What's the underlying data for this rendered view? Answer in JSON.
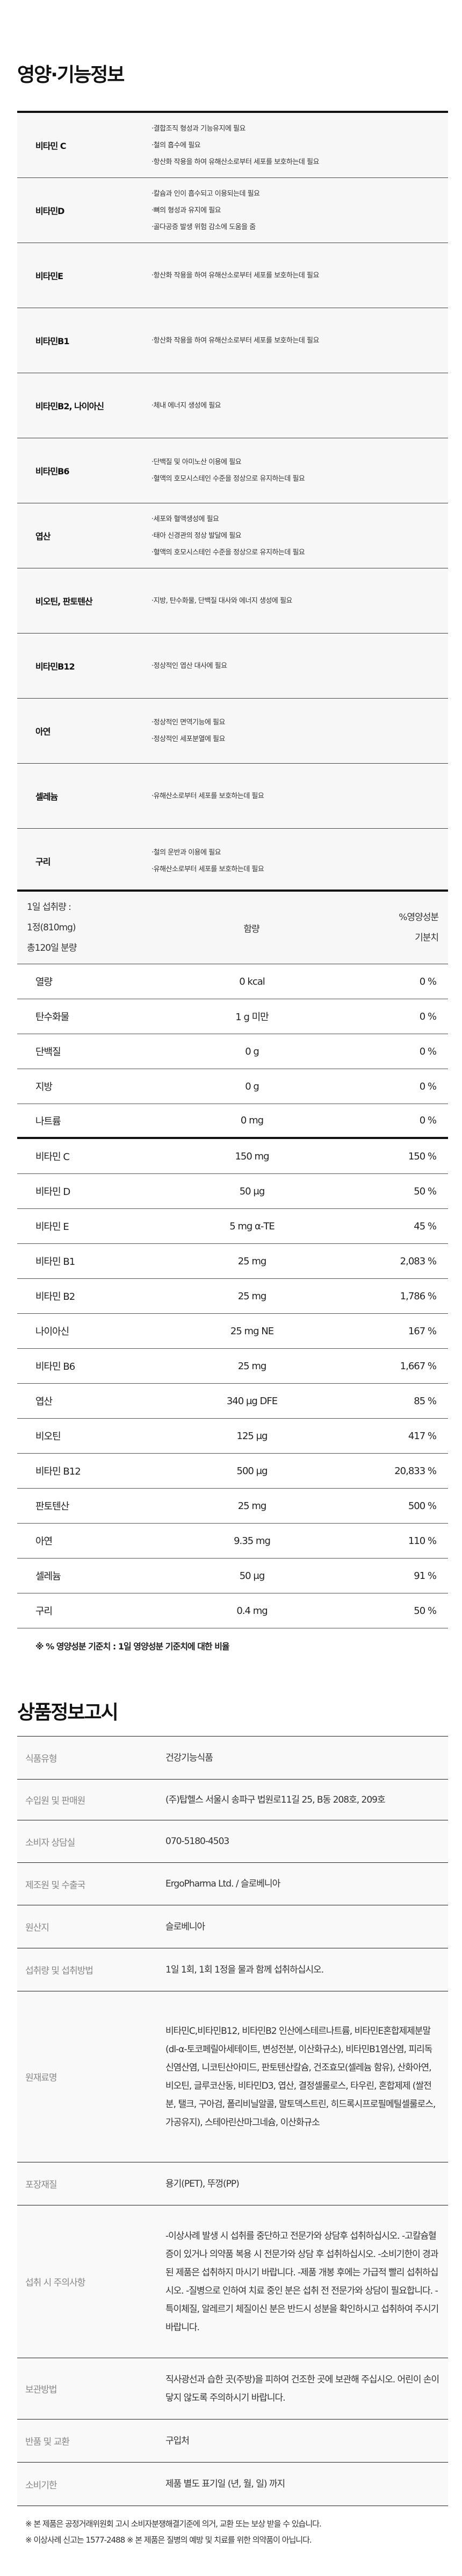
{
  "section1": {
    "title": "영양·기능정보",
    "functions": [
      {
        "name": "비타민 C",
        "desc": [
          "·결합조직 형성과 기능유지에 필요",
          "·철의 흡수에 필요",
          "·항산화 작용을 하여 유해산소로부터 세포를 보호하는데 필요"
        ]
      },
      {
        "name": "비타민D",
        "desc": [
          "·칼슘과 인이 흡수되고 이용되는데 필요",
          "·뼈의 형성과 유지에 필요",
          "·골다공증 발생 위험 감소에 도움을 줌"
        ]
      },
      {
        "name": "비타민E",
        "desc": [
          "·항산화 작용을 하여 유해산소로부터 세포를 보호하는데 필요"
        ]
      },
      {
        "name": "비타민B1",
        "desc": [
          "·항산화 작용을 하여 유해산소로부터 세포를 보호하는데 필요"
        ]
      },
      {
        "name": "비타민B2, 나이아신",
        "desc": [
          "·체내 에너지 생성에 필요"
        ]
      },
      {
        "name": "비타민B6",
        "desc": [
          "·단백질 및 아미노산 이용에 필요",
          "·혈액의 호모시스테인 수준을 정상으로 유지하는데 필요"
        ]
      },
      {
        "name": "엽산",
        "desc": [
          "·세포와 혈액생성에 필요",
          "·태아 신경관의 정상 발달에 필요",
          "·혈액의 호모시스테인 수준을 정상으로 유지하는데 필요"
        ]
      },
      {
        "name": "비오틴, 판토텐산",
        "desc": [
          "·지방, 탄수화물, 단백질 대사와 에너지 생성에 필요"
        ]
      },
      {
        "name": "비타민B12",
        "desc": [
          "·정상적인 엽산 대사에 필요"
        ]
      },
      {
        "name": "아연",
        "desc": [
          "·정상적인 면역기능에 필요",
          "·정상적인 세포분열에 필요"
        ]
      },
      {
        "name": "셀레늄",
        "desc": [
          "·유해산소로부터 세포를 보호하는데 필요"
        ]
      },
      {
        "name": "구리",
        "desc": [
          "·철의 운반과 이용에 필요",
          "·유해산소로부터 세포를 보호하는데 필요"
        ]
      }
    ]
  },
  "nutrition": {
    "header": {
      "serving": [
        "1일 섭취량 :",
        "1정(810mg)",
        "총120일 분량"
      ],
      "amount": "함량",
      "dv": [
        "%영양성분",
        "기분치"
      ]
    },
    "basic": [
      {
        "name": "열량",
        "amount": "0 kcal",
        "dv": "0 %"
      },
      {
        "name": "탄수화물",
        "amount": "1 g 미만",
        "dv": "0 %"
      },
      {
        "name": "단백질",
        "amount": "0 g",
        "dv": "0 %"
      },
      {
        "name": "지방",
        "amount": "0 g",
        "dv": "0 %"
      },
      {
        "name": "나트륨",
        "amount": "0 mg",
        "dv": "0 %"
      }
    ],
    "vitamins": [
      {
        "name": "비타민 C",
        "amount": "150 mg",
        "dv": "150 %"
      },
      {
        "name": "비타민 D",
        "amount": "50 μg",
        "dv": "50 %"
      },
      {
        "name": "비타민 E",
        "amount": "5 mg α-TE",
        "dv": "45 %"
      },
      {
        "name": "비타민 B1",
        "amount": "25 mg",
        "dv": "2,083 %"
      },
      {
        "name": "비타민 B2",
        "amount": "25 mg",
        "dv": "1,786 %"
      },
      {
        "name": "나이아신",
        "amount": "25 mg NE",
        "dv": "167 %"
      },
      {
        "name": "비타민 B6",
        "amount": "25 mg",
        "dv": "1,667 %"
      },
      {
        "name": "엽산",
        "amount": "340 μg DFE",
        "dv": "85 %"
      },
      {
        "name": "비오틴",
        "amount": "125 μg",
        "dv": "417 %"
      },
      {
        "name": "비타민 B12",
        "amount": "500 μg",
        "dv": "20,833 %"
      },
      {
        "name": "판토텐산",
        "amount": "25 mg",
        "dv": "500 %"
      },
      {
        "name": "아연",
        "amount": "9.35 mg",
        "dv": "110 %"
      },
      {
        "name": "셀레늄",
        "amount": "50 μg",
        "dv": "91 %"
      },
      {
        "name": "구리",
        "amount": "0.4 mg",
        "dv": "50 %"
      }
    ],
    "footnote": "※ % 영양성분 기준치 : 1일 영양성분 기준치에 대한 비율"
  },
  "section2": {
    "title": "상품정보고시",
    "rows": [
      {
        "label": "식품유형",
        "value": "건강기능식품"
      },
      {
        "label": "수입원 및 판매원",
        "value": "(주)탑헬스 서울시 송파구 법원로11길 25, B동 208호, 209호"
      },
      {
        "label": "소비자 상담실",
        "value": "070-5180-4503"
      },
      {
        "label": "제조원 및 수출국",
        "value": "ErgoPharma Ltd. / 슬로베니아"
      },
      {
        "label": "원산지",
        "value": "슬로베니아"
      },
      {
        "label": "섭취량 및 섭취방법",
        "value": "1일 1회, 1회 1정을 물과 함께 섭취하십시오."
      },
      {
        "label": "원재료명",
        "value": "비타민C,비타민B12, 비타민B2 인산에스테르나트륨, 비타민E혼합제제분말(dl-α-토코페릴아세테이트, 변성전분, 이산화규소), 비타민B1염산염, 피리독신염산염, 니코틴산아미드, 판토텐산칼슘, 건조효모(셀레늄 함유), 산화아연, 비오틴, 글루코산동, 비타민D3, 엽산, 결정셀룰로스, 타우린, 혼합제제 (쌀전분, 탤크, 구아검, 폴리비닐알콜, 말토덱스트린, 히드록시프로필메틸셀룰로스, 가공유지), 스테아린산마그네슘, 이산화규소"
      },
      {
        "label": "포장재질",
        "value": "용기(PET), 뚜껑(PP)"
      },
      {
        "label": "섭취 시 주의사항",
        "value": "-이상사례 발생 시 섭취를 중단하고 전문가와 상담후 섭취하십시오. -고칼슘혈증이 있거나 의약품 복용 시 전문가와 상담 후 섭취하십시오. -소비기한이 경과된 제품은 섭취하지 마시기 바랍니다. -제품 개봉 후에는 가급적 빨리 섭취하십시오. -질병으로 인하여 치료 중인 분은 섭취 전 전문가와 상담이 필요합니다. -특이체질, 알레르기 체질이신 분은 반드시 성분을 확인하시고 섭취하여 주시기 바랍니다."
      },
      {
        "label": "보관방법",
        "value": "직사광선과 습한 곳(주방)을 피하여 건조한 곳에 보관해 주십시오. 어린이 손이 닿지 않도록 주의하시기 바랍니다."
      },
      {
        "label": "반품 및 교환",
        "value": "구입처"
      },
      {
        "label": "소비기한",
        "value": "제품 별도 표기일 (년, 월, 일) 까지"
      }
    ],
    "notes": [
      "※ 본 제품은 공정거래위원회 고시 소비자분쟁해결기준에 의거, 교환 또는 보상 받을 수 있습니다.",
      "※ 이상사례 신고는 1577-2488  ※ 본 제품은 질병의 예방 및 치료를 위한 의약품이 아닙니다."
    ]
  }
}
